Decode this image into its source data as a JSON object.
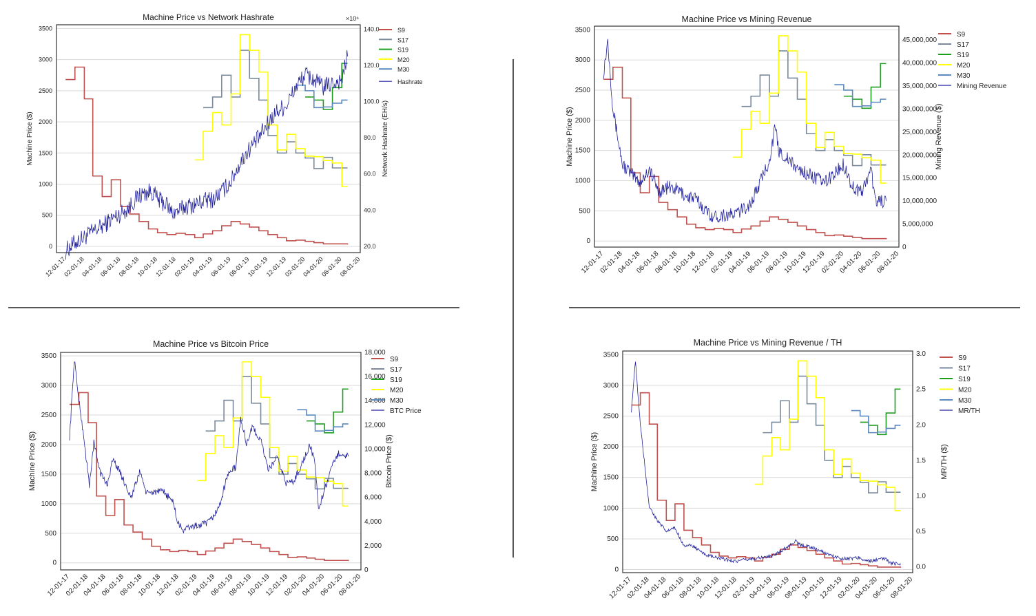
{
  "dates": [
    "12-01-17",
    "02-01-18",
    "04-01-18",
    "06-01-18",
    "08-01-18",
    "10-01-18",
    "12-01-18",
    "02-01-19",
    "04-01-19",
    "06-01-19",
    "08-01-19",
    "10-01-19",
    "12-01-19",
    "02-01-20",
    "04-01-20",
    "06-01-20",
    "08-01-20"
  ],
  "legend_labels": {
    "S9": "S9",
    "S17": "S17",
    "S19": "S19",
    "M20": "M20",
    "M30": "M30"
  },
  "colors": {
    "S9": "#c0504d",
    "S17": "#7a8a9c",
    "S19": "#1e9e1e",
    "M20": "#ffff00",
    "M30": "#5a8ac0",
    "aux": "#23239e"
  },
  "chart_data": [
    {
      "type": "line",
      "title": "Machine Price vs Network Hashrate",
      "ylabel": "Machine Price ($)",
      "y2label": "Network Hashrate (EH/s)",
      "offset_text": "×10⁶",
      "ylim": [
        -100,
        3560
      ],
      "y2lim": [
        16.5,
        142.5
      ],
      "yticks": [
        0,
        500,
        1000,
        1500,
        2000,
        2500,
        3000,
        3500
      ],
      "y2ticks": [
        20,
        40,
        60,
        80,
        100,
        120,
        140
      ],
      "y2_tick_labels": [
        "20.0",
        "40.0",
        "60.0",
        "80.0",
        "100.0",
        "120.0",
        "140.0"
      ],
      "x_tick_labels": [
        "12-01-17",
        "02-01-18",
        "04-01-18",
        "06-01-18",
        "08-01-18",
        "10-01-18",
        "12-01-18",
        "02-01-19",
        "04-01-19",
        "06-01-19",
        "08-01-19",
        "10-01-19",
        "12-01-19",
        "02-01-20",
        "04-01-20",
        "06-01-20",
        "08-01-20"
      ],
      "aux_series": {
        "name": "Hashrate",
        "points": [
          [
            "12-01-17",
            17.5
          ],
          [
            "01-01-18",
            22
          ],
          [
            "02-01-18",
            25
          ],
          [
            "03-01-18",
            28
          ],
          [
            "04-01-18",
            31
          ],
          [
            "05-01-18",
            35
          ],
          [
            "06-01-18",
            38
          ],
          [
            "07-01-18",
            42
          ],
          [
            "07-15-18",
            45
          ],
          [
            "08-01-18",
            48
          ],
          [
            "09-01-18",
            50
          ],
          [
            "09-15-18",
            50
          ],
          [
            "10-01-18",
            46
          ],
          [
            "11-01-18",
            43
          ],
          [
            "11-15-18",
            39
          ],
          [
            "12-01-18",
            39
          ],
          [
            "12-15-18",
            40
          ],
          [
            "01-01-19",
            42
          ],
          [
            "02-01-19",
            43
          ],
          [
            "03-01-19",
            45
          ],
          [
            "04-01-19",
            46
          ],
          [
            "05-01-19",
            50
          ],
          [
            "06-01-19",
            56
          ],
          [
            "07-01-19",
            66
          ],
          [
            "08-01-19",
            74
          ],
          [
            "09-01-19",
            80
          ],
          [
            "10-01-19",
            88
          ],
          [
            "11-01-19",
            95
          ],
          [
            "12-01-19",
            98
          ],
          [
            "01-01-20",
            108
          ],
          [
            "02-01-20",
            115
          ],
          [
            "03-01-20",
            112
          ],
          [
            "04-01-20",
            108
          ],
          [
            "05-01-20",
            110
          ],
          [
            "06-01-20",
            112
          ],
          [
            "06-20-20",
            125
          ]
        ],
        "noise_amplitude": 5
      }
    },
    {
      "type": "line",
      "title": "Machine Price vs Mining Revenue",
      "ylabel": "Machine Price ($)",
      "y2label": "Mining Revenue ($)",
      "ylim": [
        -100,
        3560
      ],
      "y2lim": [
        0,
        48000000
      ],
      "yticks": [
        0,
        500,
        1000,
        1500,
        2000,
        2500,
        3000,
        3500
      ],
      "y2ticks": [
        0,
        5000000,
        10000000,
        15000000,
        20000000,
        25000000,
        30000000,
        35000000,
        40000000,
        45000000
      ],
      "y2_tick_labels": [
        "0",
        "5,000,000",
        "10,000,000",
        "15,000,000",
        "20,000,000",
        "25,000,000",
        "30,000,000",
        "35,000,000",
        "40,000,000",
        "45,000,000"
      ],
      "x_tick_labels": [
        "12-01-17",
        "02-01-18",
        "04-01-18",
        "06-01-18",
        "08-01-18",
        "10-01-18",
        "12-01-18",
        "02-01-19",
        "04-01-19",
        "06-01-19",
        "08-01-19",
        "10-01-19",
        "12-01-19",
        "02-01-20",
        "04-01-20",
        "06-01-20",
        "08-01-20"
      ],
      "aux_series": {
        "name": "Mining Revenue",
        "points": [
          [
            "12-01-17",
            38000000
          ],
          [
            "12-15-17",
            45000000
          ],
          [
            "01-01-18",
            30000000
          ],
          [
            "02-01-18",
            18000000
          ],
          [
            "03-01-18",
            16000000
          ],
          [
            "04-01-18",
            14000000
          ],
          [
            "05-01-18",
            17000000
          ],
          [
            "06-01-18",
            12000000
          ],
          [
            "07-01-18",
            13000000
          ],
          [
            "08-01-18",
            12500000
          ],
          [
            "09-01-18",
            11000000
          ],
          [
            "10-01-18",
            10500000
          ],
          [
            "11-01-18",
            8000000
          ],
          [
            "12-01-18",
            6500000
          ],
          [
            "01-01-19",
            7000000
          ],
          [
            "02-01-19",
            7000000
          ],
          [
            "03-01-19",
            8000000
          ],
          [
            "04-01-19",
            9500000
          ],
          [
            "05-01-19",
            14000000
          ],
          [
            "06-01-19",
            19000000
          ],
          [
            "06-20-19",
            26000000
          ],
          [
            "07-01-19",
            21000000
          ],
          [
            "08-01-19",
            19000000
          ],
          [
            "09-01-19",
            17000000
          ],
          [
            "10-01-19",
            16000000
          ],
          [
            "11-01-19",
            15000000
          ],
          [
            "12-01-19",
            14000000
          ],
          [
            "01-01-20",
            16000000
          ],
          [
            "02-01-20",
            18000000
          ],
          [
            "03-01-20",
            13000000
          ],
          [
            "04-01-20",
            12000000
          ],
          [
            "05-01-20",
            17000000
          ],
          [
            "05-15-20",
            10000000
          ],
          [
            "06-01-20",
            10000000
          ],
          [
            "06-20-20",
            10000000
          ]
        ],
        "noise_amplitude": 1500000
      }
    },
    {
      "type": "line",
      "title": "Machine Price vs Bitcoin Price",
      "ylabel": "Machine Price ($)",
      "y2label": "Bitcoin Price ($)",
      "ylim": [
        -120,
        3560
      ],
      "y2lim": [
        0,
        18000
      ],
      "yticks": [
        0,
        500,
        1000,
        1500,
        2000,
        2500,
        3000,
        3500
      ],
      "y2ticks": [
        0,
        2000,
        4000,
        6000,
        8000,
        10000,
        12000,
        14000,
        16000,
        18000
      ],
      "y2_tick_labels": [
        "0",
        "2,000",
        "4,000",
        "6,000",
        "8,000",
        "10,000",
        "12,000",
        "14,000",
        "16,000",
        "18,000"
      ],
      "x_tick_labels": [
        "12-01-17",
        "02-01-18",
        "04-01-18",
        "06-01-18",
        "08-01-18",
        "10-01-18",
        "12-01-18",
        "02-01-19",
        "04-01-19",
        "06-01-19",
        "08-01-19",
        "10-01-19",
        "12-01-19",
        "02-01-20",
        "04-01-20",
        "06-01-20",
        "08-01-20"
      ],
      "aux_series": {
        "name": "BTC Price",
        "points": [
          [
            "12-01-17",
            11000
          ],
          [
            "12-17-17",
            17500
          ],
          [
            "01-01-18",
            14000
          ],
          [
            "01-15-18",
            11500
          ],
          [
            "02-05-18",
            7000
          ],
          [
            "02-20-18",
            10500
          ],
          [
            "03-15-18",
            8000
          ],
          [
            "04-05-18",
            7000
          ],
          [
            "04-25-18",
            9200
          ],
          [
            "05-20-18",
            8000
          ],
          [
            "06-25-18",
            6000
          ],
          [
            "07-25-18",
            8200
          ],
          [
            "08-15-18",
            6300
          ],
          [
            "09-15-18",
            6500
          ],
          [
            "10-15-18",
            6400
          ],
          [
            "11-15-18",
            5500
          ],
          [
            "11-25-18",
            4000
          ],
          [
            "12-15-18",
            3300
          ],
          [
            "01-15-19",
            3600
          ],
          [
            "02-15-19",
            3700
          ],
          [
            "03-15-19",
            4000
          ],
          [
            "04-15-19",
            5200
          ],
          [
            "05-15-19",
            8000
          ],
          [
            "06-10-19",
            8500
          ],
          [
            "06-26-19",
            12500
          ],
          [
            "07-15-19",
            10500
          ],
          [
            "08-05-19",
            11800
          ],
          [
            "09-05-19",
            10500
          ],
          [
            "09-25-19",
            8200
          ],
          [
            "10-25-19",
            9300
          ],
          [
            "11-25-19",
            7200
          ],
          [
            "12-20-19",
            7300
          ],
          [
            "01-15-20",
            8700
          ],
          [
            "02-12-20",
            10300
          ],
          [
            "03-01-20",
            8800
          ],
          [
            "03-12-20",
            5000
          ],
          [
            "04-01-20",
            6600
          ],
          [
            "05-01-20",
            8800
          ],
          [
            "05-20-20",
            9700
          ],
          [
            "06-20-20",
            9400
          ]
        ],
        "noise_amplitude": 300
      }
    },
    {
      "type": "line",
      "title": "Machine Price vs Mining Revenue / TH",
      "ylabel": "Machine Price ($)",
      "y2label": "MR/TH ($)",
      "ylim": [
        -50,
        3560
      ],
      "y2lim": [
        -0.08,
        3.04
      ],
      "yticks": [
        0,
        500,
        1000,
        1500,
        2000,
        2500,
        3000,
        3500
      ],
      "y2ticks": [
        0,
        0.5,
        1,
        1.5,
        2,
        2.5,
        3
      ],
      "y2_tick_labels": [
        "0.0",
        "0.5",
        "1.0",
        "1.5",
        "2.0",
        "2.5",
        "3.0"
      ],
      "x_tick_labels": [
        "12-01-17",
        "02-01-18",
        "04-01-18",
        "06-01-18",
        "08-01-18",
        "10-01-18",
        "12-01-18",
        "02-01-19",
        "04-01-19",
        "06-01-19",
        "08-01-19",
        "10-01-19",
        "12-01-19",
        "02-01-20",
        "04-01-20",
        "06-01-20",
        "08-01-20"
      ],
      "aux_series": {
        "name": "MR/TH",
        "points": [
          [
            "12-01-17",
            2.2
          ],
          [
            "12-15-17",
            2.9
          ],
          [
            "01-01-18",
            2.0
          ],
          [
            "02-01-18",
            0.85
          ],
          [
            "03-01-18",
            0.65
          ],
          [
            "04-01-18",
            0.5
          ],
          [
            "05-01-18",
            0.55
          ],
          [
            "06-01-18",
            0.3
          ],
          [
            "07-01-18",
            0.3
          ],
          [
            "08-01-18",
            0.2
          ],
          [
            "09-01-18",
            0.15
          ],
          [
            "10-01-18",
            0.12
          ],
          [
            "11-01-18",
            0.1
          ],
          [
            "12-01-18",
            0.08
          ],
          [
            "02-01-19",
            0.12
          ],
          [
            "04-01-19",
            0.15
          ],
          [
            "05-01-19",
            0.22
          ],
          [
            "06-01-19",
            0.3
          ],
          [
            "06-25-19",
            0.38
          ],
          [
            "07-01-19",
            0.32
          ],
          [
            "08-01-19",
            0.3
          ],
          [
            "09-01-19",
            0.25
          ],
          [
            "10-01-19",
            0.2
          ],
          [
            "11-01-19",
            0.15
          ],
          [
            "12-01-19",
            0.12
          ],
          [
            "01-01-20",
            0.12
          ],
          [
            "02-01-20",
            0.13
          ],
          [
            "03-01-20",
            0.08
          ],
          [
            "04-01-20",
            0.1
          ],
          [
            "05-01-20",
            0.12
          ],
          [
            "05-15-20",
            0.05
          ],
          [
            "06-20-20",
            0.05
          ]
        ],
        "noise_amplitude": 0.025
      }
    }
  ],
  "machine_series": {
    "S9": [
      [
        "12-01-17",
        2680
      ],
      [
        "01-01-18",
        2880
      ],
      [
        "02-01-18",
        2370
      ],
      [
        "03-01-18",
        1130
      ],
      [
        "04-01-18",
        800
      ],
      [
        "05-01-18",
        1070
      ],
      [
        "06-01-18",
        640
      ],
      [
        "07-01-18",
        520
      ],
      [
        "08-01-18",
        400
      ],
      [
        "09-01-18",
        280
      ],
      [
        "10-01-18",
        220
      ],
      [
        "11-01-18",
        190
      ],
      [
        "12-01-18",
        210
      ],
      [
        "01-01-19",
        190
      ],
      [
        "02-01-19",
        140
      ],
      [
        "03-01-19",
        200
      ],
      [
        "04-01-19",
        250
      ],
      [
        "05-01-19",
        330
      ],
      [
        "06-01-19",
        400
      ],
      [
        "07-01-19",
        360
      ],
      [
        "08-01-19",
        310
      ],
      [
        "09-01-19",
        250
      ],
      [
        "10-01-19",
        190
      ],
      [
        "11-01-19",
        140
      ],
      [
        "12-01-19",
        90
      ],
      [
        "01-01-20",
        100
      ],
      [
        "02-01-20",
        80
      ],
      [
        "03-01-20",
        60
      ],
      [
        "04-01-20",
        40
      ],
      [
        "06-20-20",
        30
      ]
    ],
    "S17": [
      [
        "03-01-19",
        2230
      ],
      [
        "04-01-19",
        2400
      ],
      [
        "05-01-19",
        2750
      ],
      [
        "06-01-19",
        2400
      ],
      [
        "07-01-19",
        3150
      ],
      [
        "08-01-19",
        2700
      ],
      [
        "09-01-19",
        2350
      ],
      [
        "10-01-19",
        1780
      ],
      [
        "11-01-19",
        1500
      ],
      [
        "12-01-19",
        1680
      ],
      [
        "01-01-20",
        1500
      ],
      [
        "02-01-20",
        1420
      ],
      [
        "03-01-20",
        1250
      ],
      [
        "04-01-20",
        1430
      ],
      [
        "05-01-20",
        1260
      ],
      [
        "06-20-20",
        1260
      ]
    ],
    "S19": [
      [
        "02-01-20",
        2400
      ],
      [
        "03-01-20",
        2350
      ],
      [
        "04-01-20",
        2200
      ],
      [
        "05-01-20",
        2550
      ],
      [
        "06-01-20",
        2940
      ],
      [
        "06-20-20",
        2940
      ]
    ],
    "M20": [
      [
        "02-01-19",
        1390
      ],
      [
        "03-01-19",
        1850
      ],
      [
        "04-01-19",
        2150
      ],
      [
        "05-01-19",
        1950
      ],
      [
        "06-01-19",
        2450
      ],
      [
        "07-01-19",
        3400
      ],
      [
        "08-01-19",
        3150
      ],
      [
        "09-01-19",
        2800
      ],
      [
        "10-01-19",
        1950
      ],
      [
        "11-01-19",
        1550
      ],
      [
        "12-01-19",
        1800
      ],
      [
        "01-01-20",
        1570
      ],
      [
        "02-01-20",
        1450
      ],
      [
        "03-01-20",
        1440
      ],
      [
        "04-01-20",
        1380
      ],
      [
        "05-01-20",
        1340
      ],
      [
        "06-01-20",
        960
      ],
      [
        "06-20-20",
        960
      ]
    ],
    "M30": [
      [
        "01-01-20",
        2590
      ],
      [
        "02-01-20",
        2500
      ],
      [
        "03-01-20",
        2230
      ],
      [
        "04-01-20",
        2240
      ],
      [
        "05-01-20",
        2300
      ],
      [
        "06-01-20",
        2350
      ],
      [
        "06-20-20",
        2350
      ]
    ]
  }
}
